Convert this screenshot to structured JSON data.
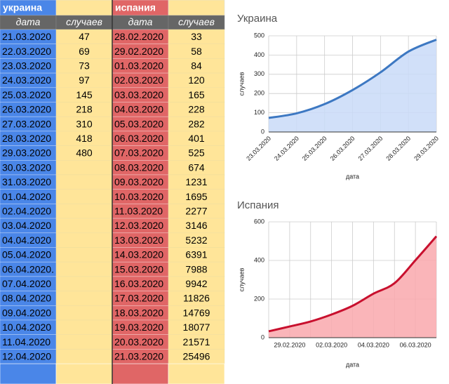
{
  "table": {
    "header": [
      "украина",
      "испания"
    ],
    "columns": [
      "дата",
      "случаев",
      "дата",
      "случаев"
    ],
    "rows": [
      [
        "21.03.2020",
        47,
        "28.02.2020",
        33
      ],
      [
        "22.03.2020",
        69,
        "29.02.2020",
        58
      ],
      [
        "23.03.2020",
        73,
        "01.03.2020",
        84
      ],
      [
        "24.03.2020",
        97,
        "02.03.2020",
        120
      ],
      [
        "25.03.2020",
        145,
        "03.03.2020",
        165
      ],
      [
        "26.03.2020",
        218,
        "04.03.2020",
        228
      ],
      [
        "27.03.2020",
        310,
        "05.03.2020",
        282
      ],
      [
        "28.03.2020",
        418,
        "06.03.2020",
        401
      ],
      [
        "29.03.2020",
        480,
        "07.03.2020",
        525
      ],
      [
        "30.03.2020",
        null,
        "08.03.2020",
        674
      ],
      [
        "31.03.2020",
        null,
        "09.03.2020",
        1231
      ],
      [
        "01.04.2020",
        null,
        "10.03.2020",
        1695
      ],
      [
        "02.04.2020",
        null,
        "11.03.2020",
        2277
      ],
      [
        "03.04.2020",
        null,
        "12.03.2020",
        3146
      ],
      [
        "04.04.2020",
        null,
        "13.03.2020",
        5232
      ],
      [
        "05.04.2020",
        null,
        "14.03.2020",
        6391
      ],
      [
        "06.04.2020.",
        null,
        "15.03.2020",
        7988
      ],
      [
        "07.04.2020",
        null,
        "16.03.2020",
        9942
      ],
      [
        "08.04.2020",
        null,
        "17.03.2020",
        11826
      ],
      [
        "09.04.2020",
        null,
        "18.03.2020",
        14769
      ],
      [
        "10.04.2020",
        null,
        "19.03.2020",
        18077
      ],
      [
        "11.04.2020",
        null,
        "20.03.2020",
        21571
      ],
      [
        "12.04.2020",
        null,
        "21.03.2020",
        25496
      ]
    ]
  },
  "chart_data": [
    {
      "type": "area",
      "title": "Украина",
      "x_label": "дата",
      "y_label": "случаев",
      "categories": [
        "23.03.2020",
        "24.03.2020",
        "25.03.2020",
        "26.03.2020",
        "27.03.2020",
        "28.03.2020",
        "29.03.2020"
      ],
      "series": [
        {
          "name": "случаев",
          "color": "#3d78c2",
          "fill": "#c9daf8",
          "values": [
            73,
            97,
            145,
            218,
            310,
            418,
            480
          ]
        }
      ],
      "ylim": [
        0,
        500
      ],
      "yticks": [
        0,
        100,
        200,
        300,
        400,
        500
      ],
      "grid": true
    },
    {
      "type": "area",
      "title": "Испания",
      "x_label": "дата",
      "y_label": "случаев",
      "categories": [
        null,
        "29.02.2020",
        null,
        "02.03.2020",
        null,
        "04.03.2020",
        null,
        "06.03.2020",
        null
      ],
      "series": [
        {
          "name": "случаев",
          "color": "#c8102e",
          "fill": "#f9a8ad",
          "values": [
            33,
            58,
            84,
            120,
            165,
            228,
            282,
            401,
            525
          ]
        }
      ],
      "ylim": [
        0,
        600
      ],
      "yticks": [
        0,
        200,
        400,
        600
      ],
      "grid": true
    }
  ]
}
